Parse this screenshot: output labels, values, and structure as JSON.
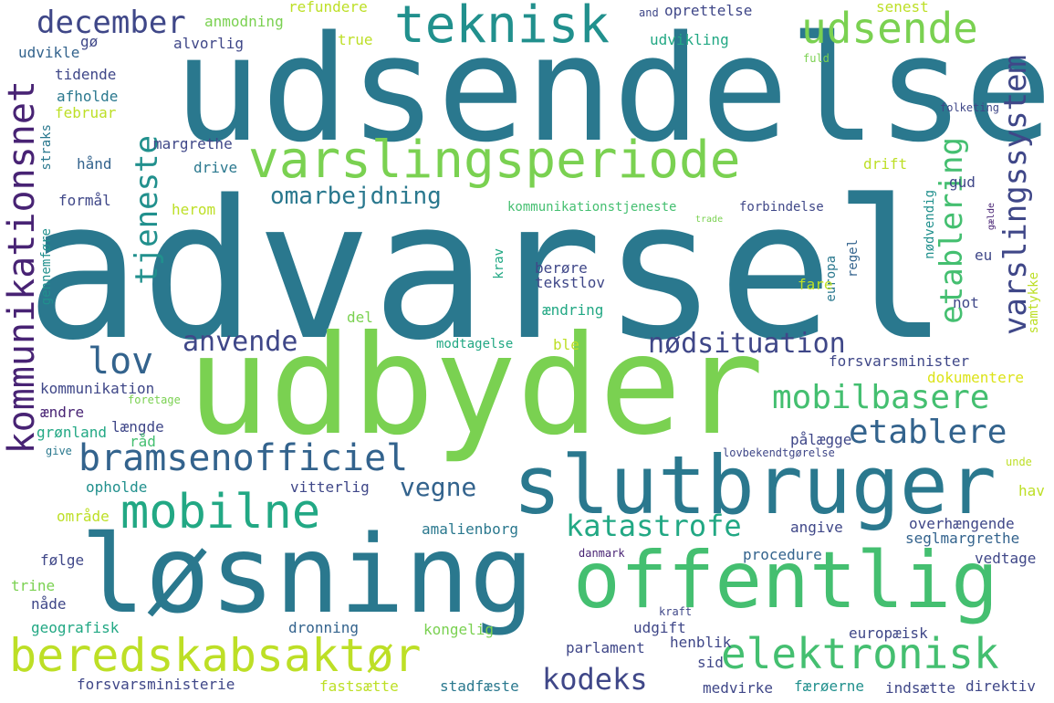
{
  "palette": {
    "dark_purple": "#482374",
    "indigo": "#3f4788",
    "blue": "#33638d",
    "steel_blue": "#2a788e",
    "teal": "#21908d",
    "sea_green": "#22a884",
    "green": "#44bf70",
    "light_green": "#7ad151",
    "yellow_green": "#bddf26",
    "yellow": "#dce319"
  },
  "words": [
    {
      "text": "advarsel",
      "color": "#2a788e"
    },
    {
      "text": "udsendelse",
      "color": "#2a788e"
    },
    {
      "text": "udbyder",
      "color": "#7ad151"
    },
    {
      "text": "løsning",
      "color": "#2a788e"
    },
    {
      "text": "slutbruger",
      "color": "#2a788e"
    },
    {
      "text": "offentlig",
      "color": "#44bf70"
    },
    {
      "text": "varslingsperiode",
      "color": "#7ad151"
    },
    {
      "text": "teknisk",
      "color": "#21908d"
    },
    {
      "text": "kommunikationsnet",
      "color": "#482374"
    },
    {
      "text": "beredskabsaktør",
      "color": "#bddf26"
    },
    {
      "text": "mobilne",
      "color": "#22a884"
    },
    {
      "text": "bramsenofficiel",
      "color": "#33638d"
    },
    {
      "text": "elektronisk",
      "color": "#44bf70"
    },
    {
      "text": "udsende",
      "color": "#7ad151"
    },
    {
      "text": "mobilbasere",
      "color": "#44bf70"
    },
    {
      "text": "etablere",
      "color": "#33638d"
    },
    {
      "text": "katastrofe",
      "color": "#22a884"
    },
    {
      "text": "varslingssystem",
      "color": "#3f4788"
    },
    {
      "text": "december",
      "color": "#3f4788"
    },
    {
      "text": "kodeks",
      "color": "#3f4788"
    },
    {
      "text": "nødsituation",
      "color": "#3f4788"
    },
    {
      "text": "lov",
      "color": "#33638d"
    },
    {
      "text": "anvende",
      "color": "#3f4788"
    },
    {
      "text": "tjeneste",
      "color": "#21908d"
    },
    {
      "text": "etablering",
      "color": "#44bf70"
    },
    {
      "text": "vegne",
      "color": "#33638d"
    },
    {
      "text": "omarbejdning",
      "color": "#2a788e"
    },
    {
      "text": "refundere",
      "color": "#bddf26"
    },
    {
      "text": "anmodning",
      "color": "#7ad151"
    },
    {
      "text": "alvorlig",
      "color": "#3f4788"
    },
    {
      "text": "gø",
      "color": "#3f4788"
    },
    {
      "text": "udvikle",
      "color": "#33638d"
    },
    {
      "text": "tidende",
      "color": "#3f4788"
    },
    {
      "text": "afholde",
      "color": "#2a788e"
    },
    {
      "text": "februar",
      "color": "#bddf26"
    },
    {
      "text": "true",
      "color": "#bddf26"
    },
    {
      "text": "and",
      "color": "#3f4788"
    },
    {
      "text": "oprettelse",
      "color": "#3f4788"
    },
    {
      "text": "senest",
      "color": "#bddf26"
    },
    {
      "text": "udvikling",
      "color": "#22a884"
    },
    {
      "text": "fuld",
      "color": "#7ad151"
    },
    {
      "text": "folketing",
      "color": "#3f4788"
    },
    {
      "text": "margrethe",
      "color": "#3f4788"
    },
    {
      "text": "straks",
      "color": "#2a788e"
    },
    {
      "text": "hånd",
      "color": "#33638d"
    },
    {
      "text": "drive",
      "color": "#2a788e"
    },
    {
      "text": "drift",
      "color": "#bddf26"
    },
    {
      "text": "gud",
      "color": "#3f4788"
    },
    {
      "text": "formål",
      "color": "#3f4788"
    },
    {
      "text": "herom",
      "color": "#bddf26"
    },
    {
      "text": "kommunikationstjeneste",
      "color": "#44bf70"
    },
    {
      "text": "forbindelse",
      "color": "#3f4788"
    },
    {
      "text": "nødvendig",
      "color": "#21908d"
    },
    {
      "text": "trade",
      "color": "#7ad151"
    },
    {
      "text": "gælde",
      "color": "#482374"
    },
    {
      "text": "gennemføre",
      "color": "#21908d"
    },
    {
      "text": "krav",
      "color": "#22a884"
    },
    {
      "text": "berøre",
      "color": "#3f4788"
    },
    {
      "text": "tekstlov",
      "color": "#3f4788"
    },
    {
      "text": "europa",
      "color": "#2a788e"
    },
    {
      "text": "regel",
      "color": "#33638d"
    },
    {
      "text": "eu",
      "color": "#3f4788"
    },
    {
      "text": "fare",
      "color": "#bddf26"
    },
    {
      "text": "samtykke",
      "color": "#bddf26"
    },
    {
      "text": "not",
      "color": "#3f4788"
    },
    {
      "text": "del",
      "color": "#7ad151"
    },
    {
      "text": "ændring",
      "color": "#22a884"
    },
    {
      "text": "modtagelse",
      "color": "#22a884"
    },
    {
      "text": "ble",
      "color": "#bddf26"
    },
    {
      "text": "forsvarsminister",
      "color": "#3f4788"
    },
    {
      "text": "dokumentere",
      "color": "#dce319"
    },
    {
      "text": "kommunikation",
      "color": "#3f4788"
    },
    {
      "text": "foretage",
      "color": "#7ad151"
    },
    {
      "text": "ændre",
      "color": "#482374"
    },
    {
      "text": "grønland",
      "color": "#22a884"
    },
    {
      "text": "længde",
      "color": "#3f4788"
    },
    {
      "text": "råd",
      "color": "#44bf70"
    },
    {
      "text": "pålægge",
      "color": "#3f4788"
    },
    {
      "text": "give",
      "color": "#2a788e"
    },
    {
      "text": "lovbekendtgørelse",
      "color": "#3f4788"
    },
    {
      "text": "unde",
      "color": "#bddf26"
    },
    {
      "text": "opholde",
      "color": "#21908d"
    },
    {
      "text": "vitterlig",
      "color": "#3f4788"
    },
    {
      "text": "hav",
      "color": "#bddf26"
    },
    {
      "text": "område",
      "color": "#bddf26"
    },
    {
      "text": "amalienborg",
      "color": "#2a788e"
    },
    {
      "text": "angive",
      "color": "#3f4788"
    },
    {
      "text": "overhængende",
      "color": "#3f4788"
    },
    {
      "text": "seglmargrethe",
      "color": "#33638d"
    },
    {
      "text": "følge",
      "color": "#3f4788"
    },
    {
      "text": "procedure",
      "color": "#33638d"
    },
    {
      "text": "danmark",
      "color": "#482374"
    },
    {
      "text": "vedtage",
      "color": "#3f4788"
    },
    {
      "text": "trine",
      "color": "#7ad151"
    },
    {
      "text": "nåde",
      "color": "#3f4788"
    },
    {
      "text": "kraft",
      "color": "#3f4788"
    },
    {
      "text": "geografisk",
      "color": "#22a884"
    },
    {
      "text": "dronning",
      "color": "#33638d"
    },
    {
      "text": "kongelig",
      "color": "#7ad151"
    },
    {
      "text": "udgift",
      "color": "#3f4788"
    },
    {
      "text": "henblik",
      "color": "#3f4788"
    },
    {
      "text": "europæisk",
      "color": "#3f4788"
    },
    {
      "text": "parlament",
      "color": "#3f4788"
    },
    {
      "text": "sid",
      "color": "#3f4788"
    },
    {
      "text": "forsvarsministerie",
      "color": "#3f4788"
    },
    {
      "text": "fastsætte",
      "color": "#bddf26"
    },
    {
      "text": "stadfæste",
      "color": "#2a788e"
    },
    {
      "text": "medvirke",
      "color": "#3f4788"
    },
    {
      "text": "færøerne",
      "color": "#21908d"
    },
    {
      "text": "indsætte",
      "color": "#3f4788"
    },
    {
      "text": "direktiv",
      "color": "#3f4788"
    }
  ]
}
